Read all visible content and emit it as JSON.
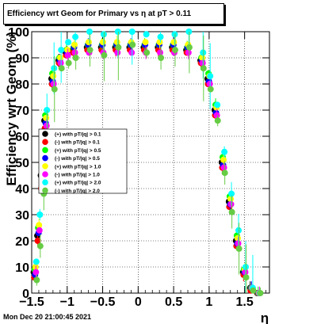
{
  "title": "Efficiency wrt Geom for Primary vs  η at pT > 0.11",
  "footer": "Mon Dec 20 21:00:45 2021",
  "chart_data": {
    "type": "scatter",
    "xlabel": "η",
    "ylabel": "Efficiency wrt Geom (%)",
    "xlim": [
      -1.5,
      1.85
    ],
    "ylim": [
      0,
      100
    ],
    "xticks": [
      -1.5,
      -1,
      -0.5,
      0,
      0.5,
      1,
      1.5
    ],
    "xtick_labels": [
      "−1.5",
      "−1",
      "−0.5",
      "0",
      "0.5",
      "1",
      "1.5"
    ],
    "yticks": [
      0,
      10,
      20,
      30,
      40,
      50,
      60,
      70,
      80,
      90,
      100
    ],
    "ytick_labels": [
      "0",
      "10",
      "20",
      "30",
      "40",
      "50",
      "60",
      "70",
      "80",
      "90",
      "100"
    ],
    "grid": true,
    "legend_position": "middle-left",
    "series": [
      {
        "name": "(+) with pT/|q| > 0.1",
        "color": "#000000",
        "x": [
          -1.45,
          -1.4,
          -1.35,
          -1.3,
          -1.2,
          -1.1,
          -1.0,
          -0.9,
          -0.7,
          -0.5,
          -0.3,
          -0.1,
          0.1,
          0.3,
          0.5,
          0.7,
          0.9,
          1.0,
          1.1,
          1.2,
          1.3,
          1.4,
          1.5,
          1.6,
          1.7
        ],
        "y": [
          8,
          22,
          45,
          66,
          82,
          89,
          92,
          93,
          94,
          94,
          94,
          94,
          94,
          94,
          94,
          93,
          89,
          82,
          70,
          50,
          35,
          20,
          8,
          2,
          0
        ]
      },
      {
        "name": "(-) with pT/|q| > 0.1",
        "color": "#ff0000",
        "x": [
          -1.45,
          -1.4,
          -1.35,
          -1.3,
          -1.2,
          -1.1,
          -1.0,
          -0.9,
          -0.7,
          -0.5,
          -0.3,
          -0.1,
          0.1,
          0.3,
          0.5,
          0.7,
          0.9,
          1.0,
          1.1,
          1.2,
          1.3,
          1.4,
          1.5,
          1.6,
          1.7
        ],
        "y": [
          6,
          20,
          40,
          63,
          80,
          88,
          91,
          92,
          93,
          93,
          93,
          93,
          93,
          93,
          93,
          92,
          88,
          80,
          68,
          48,
          33,
          18,
          7,
          1,
          0
        ]
      },
      {
        "name": "(+) with pT/|q| > 0.5",
        "color": "#00ff00",
        "x": [
          -1.45,
          -1.4,
          -1.35,
          -1.3,
          -1.2,
          -1.1,
          -1.0,
          -0.9,
          -0.7,
          -0.5,
          -0.3,
          -0.1,
          0.1,
          0.3,
          0.5,
          0.7,
          0.9,
          1.0,
          1.1,
          1.2,
          1.3,
          1.4,
          1.5,
          1.6,
          1.7
        ],
        "y": [
          9,
          25,
          48,
          68,
          84,
          90,
          93,
          94,
          95,
          95,
          95,
          95,
          95,
          95,
          95,
          94,
          90,
          84,
          72,
          52,
          37,
          22,
          9,
          2,
          0
        ]
      },
      {
        "name": "(-) with pT/|q| > 0.5",
        "color": "#0000ff",
        "x": [
          -1.45,
          -1.4,
          -1.35,
          -1.3,
          -1.2,
          -1.1,
          -1.0,
          -0.9,
          -0.7,
          -0.5,
          -0.3,
          -0.1,
          0.1,
          0.3,
          0.5,
          0.7,
          0.9,
          1.0,
          1.1,
          1.2,
          1.3,
          1.4,
          1.5,
          1.6,
          1.7
        ],
        "y": [
          7,
          23,
          44,
          65,
          81,
          89,
          92,
          94,
          95,
          95,
          95,
          95,
          95,
          95,
          95,
          94,
          89,
          81,
          69,
          49,
          34,
          19,
          8,
          2,
          0
        ]
      },
      {
        "name": "(+) with pT/|q| > 1.0",
        "color": "#ffff00",
        "x": [
          -1.45,
          -1.4,
          -1.35,
          -1.3,
          -1.2,
          -1.1,
          -1.0,
          -0.9,
          -0.7,
          -0.5,
          -0.3,
          -0.1,
          0.1,
          0.3,
          0.5,
          0.7,
          0.9,
          1.0,
          1.1,
          1.2,
          1.3,
          1.4,
          1.5,
          1.6,
          1.7
        ],
        "y": [
          10,
          26,
          47,
          67,
          83,
          90,
          93,
          95,
          96,
          96,
          96,
          96,
          96,
          96,
          96,
          95,
          90,
          83,
          71,
          51,
          36,
          21,
          9,
          2,
          0
        ]
      },
      {
        "name": "(-) with pT/|q| > 1.0",
        "color": "#ff00ff",
        "x": [
          -1.45,
          -1.4,
          -1.35,
          -1.3,
          -1.2,
          -1.1,
          -1.0,
          -0.9,
          -0.7,
          -0.5,
          -0.3,
          -0.1,
          0.1,
          0.3,
          0.5,
          0.7,
          0.9,
          1.0,
          1.1,
          1.2,
          1.3,
          1.4,
          1.5,
          1.6,
          1.7
        ],
        "y": [
          8,
          24,
          46,
          64,
          80,
          88,
          91,
          92,
          92,
          92,
          92,
          92,
          92,
          92,
          92,
          92,
          88,
          80,
          68,
          48,
          34,
          19,
          8,
          2,
          0
        ]
      },
      {
        "name": "(+) with pT/|q| > 2.0",
        "color": "#00ffff",
        "x": [
          -1.45,
          -1.4,
          -1.35,
          -1.3,
          -1.2,
          -1.1,
          -1.0,
          -0.9,
          -0.7,
          -0.5,
          -0.3,
          -0.1,
          0.1,
          0.3,
          0.5,
          0.7,
          0.9,
          1.0,
          1.1,
          1.2,
          1.3,
          1.4,
          1.5,
          1.6,
          1.7
        ],
        "y": [
          12,
          30,
          50,
          70,
          86,
          93,
          96,
          98,
          100,
          99,
          100,
          100,
          99,
          98,
          99,
          100,
          92,
          83,
          72,
          54,
          38,
          24,
          10,
          2,
          0
        ]
      },
      {
        "name": "(-) with pT/|q| > 2.0",
        "color": "#66cc44",
        "x": [
          -1.45,
          -1.4,
          -1.35,
          -1.3,
          -1.2,
          -1.1,
          -1.0,
          -0.9,
          -0.7,
          -0.5,
          -0.3,
          -0.1,
          0.1,
          0.3,
          0.5,
          0.7,
          0.9,
          1.0,
          1.1,
          1.2,
          1.3,
          1.4,
          1.5,
          1.6,
          1.7
        ],
        "y": [
          5,
          18,
          38,
          60,
          78,
          86,
          88,
          90,
          93,
          91,
          94,
          95,
          92,
          90,
          93,
          94,
          86,
          78,
          66,
          46,
          31,
          17,
          6,
          1,
          0
        ]
      }
    ]
  }
}
